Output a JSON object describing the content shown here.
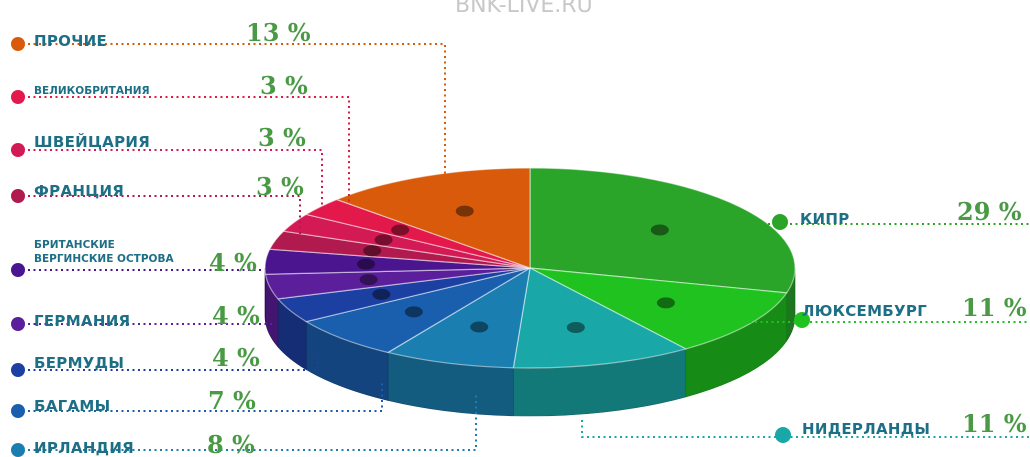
{
  "watermark": "BNK-LIVE.RU",
  "chart_data": {
    "type": "pie",
    "title": "",
    "slices": [
      {
        "key": "cyprus",
        "label": "КИПР",
        "value": 29,
        "display": "29 %",
        "color": "#2aa52a"
      },
      {
        "key": "luxembourg",
        "label": "ЛЮКСЕМБУРГ",
        "value": 11,
        "display": "11 %",
        "color": "#1fc21f"
      },
      {
        "key": "netherlands",
        "label": "НИДЕРЛАНДЫ",
        "value": 11,
        "display": "11 %",
        "color": "#1aa7a7"
      },
      {
        "key": "ireland",
        "label": "ИРЛАНДИЯ",
        "value": 8,
        "display": "8 %",
        "color": "#1a7fb0"
      },
      {
        "key": "bahamas",
        "label": "БАГАМЫ",
        "value": 7,
        "display": "7 %",
        "color": "#1a5fae"
      },
      {
        "key": "bermuda",
        "label": "БЕРМУДЫ",
        "value": 4,
        "display": "4 %",
        "color": "#1c3fa2"
      },
      {
        "key": "germany",
        "label": "ГЕРМАНИЯ",
        "value": 4,
        "display": "4 %",
        "color": "#5b1f9c"
      },
      {
        "key": "bvi",
        "label": "БРИТАНСКИЕ ВЕРГИНСКИЕ ОСТРОВА",
        "label_line1": "БРИТАНСКИЕ",
        "label_line2": "ВЕРГИНСКИЕ ОСТРОВА",
        "value": 4,
        "display": "4 %",
        "color": "#4a158e"
      },
      {
        "key": "france",
        "label": "ФРАНЦИЯ",
        "value": 3,
        "display": "3 %",
        "color": "#b01a4e"
      },
      {
        "key": "switzerland",
        "label": "ШВЕЙЦАРИЯ",
        "value": 3,
        "display": "3 %",
        "color": "#d41a55"
      },
      {
        "key": "uk",
        "label": "ВЕЛИКОБРИТАНИЯ",
        "value": 3,
        "display": "3 %",
        "color": "#e2194a"
      },
      {
        "key": "other",
        "label": "ПРОЧИЕ",
        "value": 13,
        "display": "13 %",
        "color": "#d95a0a"
      }
    ]
  }
}
